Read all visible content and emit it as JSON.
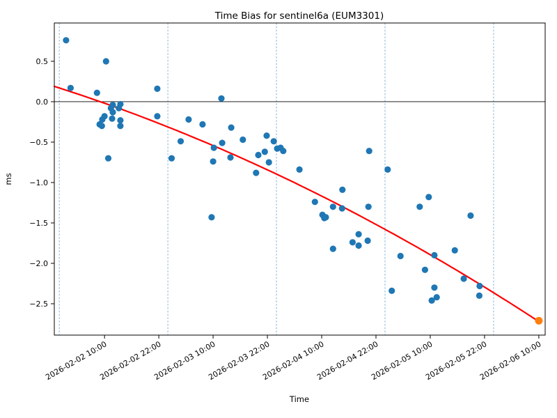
{
  "figure": {
    "background": "#ffffff"
  },
  "chart_data": {
    "type": "scatter",
    "title": "Time Bias for sentinel6a (EUM3301)",
    "xlabel": "Time",
    "ylabel": "ms",
    "x_tick_labels": [
      "2026-02-02 10:00",
      "2026-02-02 22:00",
      "2026-02-03 10:00",
      "2026-02-03 22:00",
      "2026-02-04 10:00",
      "2026-02-04 22:00",
      "2026-02-05 10:00",
      "2026-02-05 22:00",
      "2026-02-06 10:00"
    ],
    "x_tick_hours": [
      10,
      22,
      34,
      46,
      58,
      70,
      82,
      94,
      106
    ],
    "y_tick_labels": [
      "0.5",
      "0.0",
      "−0.5",
      "−1.0",
      "−1.5",
      "−2.0",
      "−2.5"
    ],
    "y_tick_values": [
      0.5,
      0.0,
      -0.5,
      -1.0,
      -1.5,
      -2.0,
      -2.5
    ],
    "epoch": "2026-02-02 00:00",
    "xlim_hours": [
      -1.1,
      107.4
    ],
    "ylim": [
      -2.888,
      0.974
    ],
    "day_gridline_hours": [
      0,
      24,
      48,
      72,
      96
    ],
    "zero_line_value": 0,
    "grid": "vertical-dashed-daily",
    "legend": "none",
    "colors": {
      "scatter": "#1f77b4",
      "fit_line": "#ff0000",
      "fit_endpoint": "#ff7f0e",
      "gridline": "#78aed3",
      "axis": "#000000"
    },
    "series": [
      {
        "name": "time-bias-points",
        "color_key": "scatter",
        "marker": "circle",
        "points": [
          [
            "2026-02-02 01:30",
            0.76
          ],
          [
            "2026-02-02 02:30",
            0.17
          ],
          [
            "2026-02-02 08:20",
            0.11
          ],
          [
            "2026-02-02 08:55",
            -0.28
          ],
          [
            "2026-02-02 09:25",
            -0.3
          ],
          [
            "2026-02-02 09:30",
            -0.22
          ],
          [
            "2026-02-02 10:00",
            -0.18
          ],
          [
            "2026-02-02 10:20",
            0.5
          ],
          [
            "2026-02-02 10:50",
            -0.7
          ],
          [
            "2026-02-02 11:25",
            -0.08
          ],
          [
            "2026-02-02 11:40",
            -0.21
          ],
          [
            "2026-02-02 11:50",
            -0.04
          ],
          [
            "2026-02-02 11:50",
            -0.13
          ],
          [
            "2026-02-02 13:10",
            -0.08
          ],
          [
            "2026-02-02 13:30",
            -0.03
          ],
          [
            "2026-02-02 13:30",
            -0.23
          ],
          [
            "2026-02-02 13:30",
            -0.3
          ],
          [
            "2026-02-02 21:40",
            0.16
          ],
          [
            "2026-02-02 21:40",
            -0.18
          ],
          [
            "2026-02-03 00:50",
            -0.7
          ],
          [
            "2026-02-03 02:50",
            -0.49
          ],
          [
            "2026-02-03 04:35",
            -0.22
          ],
          [
            "2026-02-03 07:40",
            -0.28
          ],
          [
            "2026-02-03 09:40",
            -1.43
          ],
          [
            "2026-02-03 10:00",
            -0.74
          ],
          [
            "2026-02-03 10:10",
            -0.57
          ],
          [
            "2026-02-03 11:50",
            0.04
          ],
          [
            "2026-02-03 12:00",
            -0.51
          ],
          [
            "2026-02-03 13:50",
            -0.69
          ],
          [
            "2026-02-03 14:00",
            -0.32
          ],
          [
            "2026-02-03 16:35",
            -0.47
          ],
          [
            "2026-02-03 19:30",
            -0.88
          ],
          [
            "2026-02-03 20:00",
            -0.66
          ],
          [
            "2026-02-03 21:25",
            -0.62
          ],
          [
            "2026-02-03 21:50",
            -0.42
          ],
          [
            "2026-02-03 22:20",
            -0.75
          ],
          [
            "2026-02-03 23:25",
            -0.49
          ],
          [
            "2026-02-04 00:10",
            -0.58
          ],
          [
            "2026-02-04 00:55",
            -0.57
          ],
          [
            "2026-02-04 01:30",
            -0.61
          ],
          [
            "2026-02-04 05:05",
            -0.84
          ],
          [
            "2026-02-04 08:30",
            -1.24
          ],
          [
            "2026-02-04 10:10",
            -1.4
          ],
          [
            "2026-02-04 10:35",
            -1.44
          ],
          [
            "2026-02-04 10:55",
            -1.43
          ],
          [
            "2026-02-04 12:30",
            -1.3
          ],
          [
            "2026-02-04 12:30",
            -1.82
          ],
          [
            "2026-02-04 14:30",
            -1.32
          ],
          [
            "2026-02-04 14:35",
            -1.09
          ],
          [
            "2026-02-04 16:50",
            -1.74
          ],
          [
            "2026-02-04 18:10",
            -1.64
          ],
          [
            "2026-02-04 18:10",
            -1.78
          ],
          [
            "2026-02-04 20:10",
            -1.72
          ],
          [
            "2026-02-04 20:20",
            -1.3
          ],
          [
            "2026-02-04 20:30",
            -0.61
          ],
          [
            "2026-02-05 00:35",
            -0.84
          ],
          [
            "2026-02-05 01:30",
            -2.34
          ],
          [
            "2026-02-05 03:25",
            -1.91
          ],
          [
            "2026-02-05 07:40",
            -1.3
          ],
          [
            "2026-02-05 08:50",
            -2.08
          ],
          [
            "2026-02-05 09:40",
            -1.18
          ],
          [
            "2026-02-05 10:20",
            -2.46
          ],
          [
            "2026-02-05 10:55",
            -1.9
          ],
          [
            "2026-02-05 10:55",
            -2.3
          ],
          [
            "2026-02-05 11:25",
            -2.42
          ],
          [
            "2026-02-05 15:25",
            -1.84
          ],
          [
            "2026-02-05 17:25",
            -2.19
          ],
          [
            "2026-02-05 18:55",
            -1.41
          ],
          [
            "2026-02-05 20:50",
            -2.4
          ],
          [
            "2026-02-05 20:55",
            -2.28
          ]
        ]
      },
      {
        "name": "fit-endpoint",
        "color_key": "fit_endpoint",
        "marker": "circle",
        "points": [
          [
            "2026-02-06 10:00",
            -2.71
          ]
        ]
      }
    ],
    "fit_curve": {
      "name": "polynomial-fit",
      "color_key": "fit_line",
      "poly_coeffs_ms_vs_hours": [
        0.17,
        -0.018,
        -8.74e-05
      ],
      "t_start_hours": -1.1,
      "t_end_hours": 106.3
    }
  }
}
